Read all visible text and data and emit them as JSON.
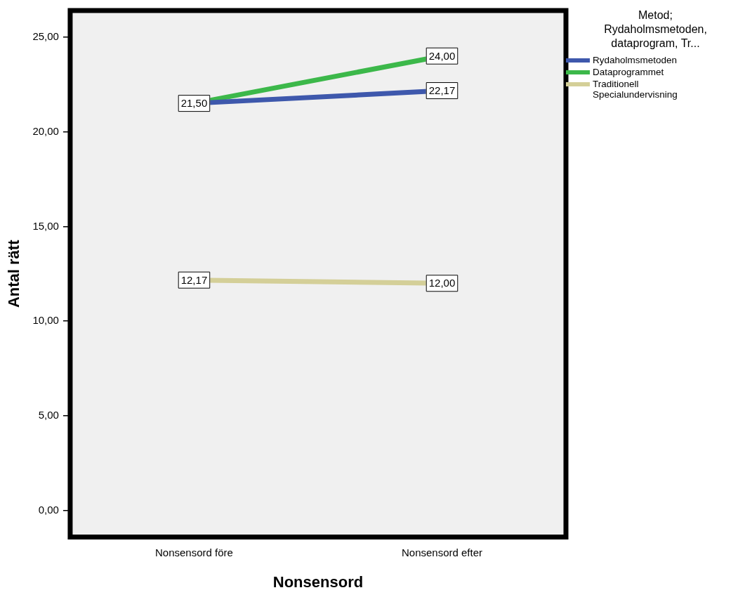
{
  "chart_data": {
    "type": "line",
    "xlabel": "Nonsensord",
    "ylabel": "Antal rätt",
    "legend_title": "Metod; Rydaholmsmetoden, dataprogram, Tr...",
    "categories": [
      "Nonsensord före",
      "Nonsensord efter"
    ],
    "series": [
      {
        "name": "Rydaholmsmetoden",
        "color": "#3e58ac",
        "values": [
          21.5,
          22.17
        ],
        "value_labels": [
          "21,50",
          "22,17"
        ]
      },
      {
        "name": "Dataprogrammet",
        "color": "#3cb84a",
        "values": [
          21.5,
          24.0
        ],
        "value_labels": [
          null,
          "24,00"
        ]
      },
      {
        "name": "Traditionell Specialundervisning",
        "color": "#d4cf98",
        "values": [
          12.17,
          12.0
        ],
        "value_labels": [
          "12,17",
          "12,00"
        ]
      }
    ],
    "ylim": [
      -1.4,
      26.4
    ],
    "yticks": [
      {
        "value": 0,
        "label": "0,00"
      },
      {
        "value": 5,
        "label": "5,00"
      },
      {
        "value": 10,
        "label": "10,00"
      },
      {
        "value": 15,
        "label": "15,00"
      },
      {
        "value": 20,
        "label": "20,00"
      },
      {
        "value": 25,
        "label": "25,00"
      }
    ],
    "grid": false,
    "legend": "right",
    "marker": "none"
  }
}
